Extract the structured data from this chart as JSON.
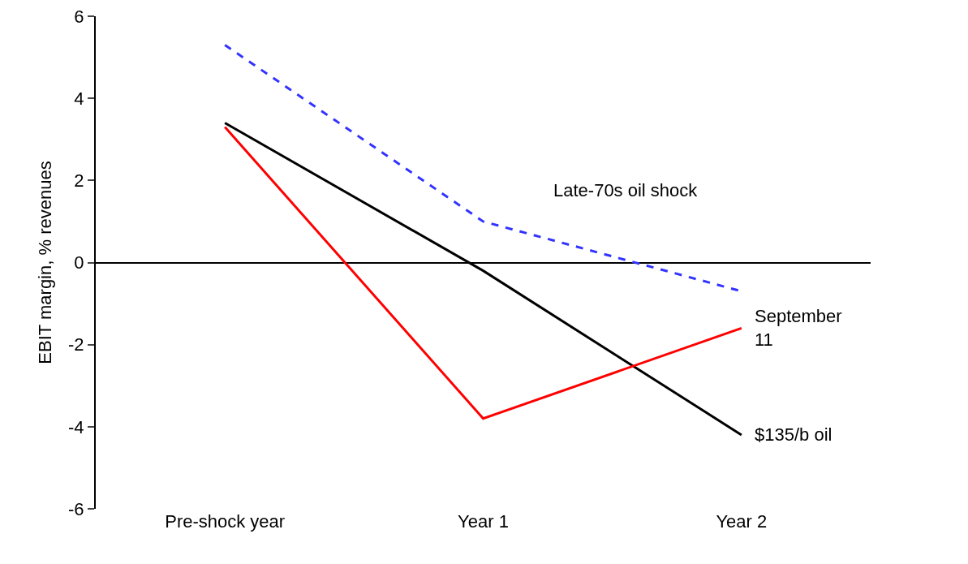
{
  "chart_data": {
    "type": "line",
    "ylabel": "EBIT margin, % revenues",
    "categories": [
      "Pre-shock year",
      "Year 1",
      "Year 2"
    ],
    "series": [
      {
        "name": "Late-70s oil shock",
        "color": "#3333ff",
        "line_style": "dashed",
        "values": [
          5.3,
          1.0,
          -0.7
        ]
      },
      {
        "name": "$135/b oil",
        "color": "#000000",
        "line_style": "solid",
        "values": [
          3.4,
          -0.2,
          -4.2
        ]
      },
      {
        "name": "September 11",
        "color": "#ff0000",
        "line_style": "solid",
        "values": [
          3.3,
          -3.8,
          -1.6
        ]
      }
    ],
    "ylim": [
      -6,
      6
    ],
    "yticks": [
      -6,
      -4,
      -2,
      0,
      2,
      4,
      6
    ],
    "legend": false,
    "marker": "none"
  }
}
